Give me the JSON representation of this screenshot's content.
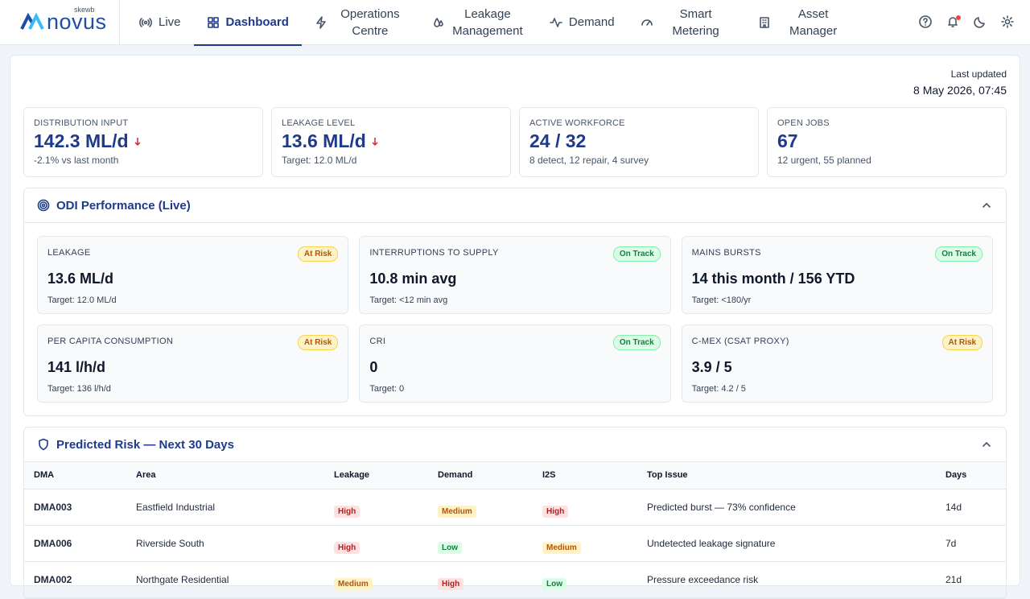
{
  "nav": {
    "brand_small": "skewb",
    "brand": "novus",
    "items": [
      {
        "label": "Live"
      },
      {
        "label": "Dashboard",
        "active": true
      },
      {
        "label": "Operations Centre"
      },
      {
        "label": "Leakage Management"
      },
      {
        "label": "Demand"
      },
      {
        "label": "Smart Metering"
      },
      {
        "label": "Asset Manager"
      }
    ]
  },
  "header": {
    "last_updated_label": "Last updated",
    "last_updated": "8 May 2026, 07:45"
  },
  "kpis": [
    {
      "label": "DISTRIBUTION INPUT",
      "value": "142.3 ML/d",
      "note": "-2.1% vs last month",
      "trend": "down"
    },
    {
      "label": "LEAKAGE LEVEL",
      "value": "13.6 ML/d",
      "note": "Target: 12.0 ML/d",
      "trend": "down"
    },
    {
      "label": "ACTIVE WORKFORCE",
      "value": "24 / 32",
      "note": "8 detect, 12 repair, 4 survey"
    },
    {
      "label": "OPEN JOBS",
      "value": "67",
      "note": "12 urgent, 55 planned"
    }
  ],
  "odi": {
    "title": "ODI Performance (Live)",
    "cards": [
      {
        "label": "LEAKAGE",
        "status": "At Risk",
        "tone": "amber",
        "value": "13.6 ML/d",
        "target": "Target: 12.0 ML/d"
      },
      {
        "label": "INTERRUPTIONS TO SUPPLY",
        "status": "On Track",
        "tone": "green",
        "value": "10.8 min avg",
        "target": "Target: <12 min avg"
      },
      {
        "label": "MAINS BURSTS",
        "status": "On Track",
        "tone": "green",
        "value": "14 this month / 156 YTD",
        "target": "Target: <180/yr"
      },
      {
        "label": "PER CAPITA CONSUMPTION",
        "status": "At Risk",
        "tone": "amber",
        "value": "141 l/h/d",
        "target": "Target: 136 l/h/d"
      },
      {
        "label": "CRI",
        "status": "On Track",
        "tone": "green",
        "value": "0",
        "target": "Target: 0"
      },
      {
        "label": "C-MEX (CSAT PROXY)",
        "status": "At Risk",
        "tone": "amber",
        "value": "3.9 / 5",
        "target": "Target: 4.2 / 5"
      }
    ]
  },
  "risk": {
    "title": "Predicted Risk — Next 30 Days",
    "columns": [
      "DMA",
      "Area",
      "Leakage",
      "Demand",
      "I2S",
      "Top Issue",
      "Days"
    ],
    "rows": [
      [
        "DMA003",
        "Eastfield Industrial",
        {
          "text": "High",
          "tone": "red"
        },
        {
          "text": "Medium",
          "tone": "amber"
        },
        {
          "text": "High",
          "tone": "red"
        },
        "Predicted burst — 73% confidence",
        "14d"
      ],
      [
        "DMA006",
        "Riverside South",
        {
          "text": "High",
          "tone": "red"
        },
        {
          "text": "Low",
          "tone": "green"
        },
        {
          "text": "Medium",
          "tone": "amber"
        },
        "Undetected leakage signature",
        "7d"
      ],
      [
        "DMA002",
        "Northgate Residential",
        {
          "text": "Medium",
          "tone": "amber"
        },
        {
          "text": "High",
          "tone": "red"
        },
        {
          "text": "Low",
          "tone": "green"
        },
        "Pressure exceedance risk",
        "21d"
      ]
    ]
  }
}
